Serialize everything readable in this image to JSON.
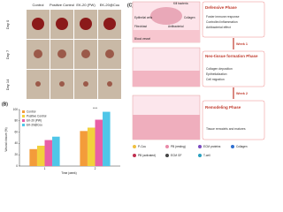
{
  "panel_a": {
    "columns": [
      "Control",
      "Positive Control",
      "EK-20 (PW)",
      "EK-20@Cou"
    ],
    "rows": [
      "Day 0",
      "Day 7",
      "Day 14"
    ]
  },
  "chart_data": {
    "type": "bar",
    "panel_label": "(B)",
    "y_label": "Wound closure (%)",
    "x_label": "Time (week)",
    "categories": [
      "1",
      "2"
    ],
    "series": [
      {
        "name": "Control",
        "color": "#f39c3a",
        "values": [
          30,
          62
        ]
      },
      {
        "name": "Positive Control",
        "color": "#f2d13c",
        "values": [
          36,
          68
        ]
      },
      {
        "name": "EK-20 (PW)",
        "color": "#e85fa6",
        "values": [
          46,
          82
        ]
      },
      {
        "name": "EK-20@Cou",
        "color": "#4fc6e8",
        "values": [
          52,
          96
        ]
      }
    ],
    "ylim": [
      0,
      100
    ],
    "yticks": [
      0,
      20,
      40,
      60,
      80,
      100
    ],
    "significance": "****"
  },
  "panel_c": {
    "panel_label": "(C)",
    "labels": [
      "Kill bacteria",
      "Epithelial cells",
      "Fibroblast",
      "Blood vessel",
      "Antibacterial",
      "Collagen"
    ],
    "phases": [
      {
        "title": "Defensive Phase",
        "items": [
          "Foster immune response",
          "Controlled inflammation",
          "Antibacterial effect"
        ]
      },
      {
        "title": "Neo-tissue formation Phase",
        "items": [
          "Collagen deposition",
          "Epithelialization",
          "Cell migration"
        ]
      },
      {
        "title": "Remodeling Phase",
        "items": [
          "Tissue remodels and matures"
        ]
      }
    ],
    "weeks": [
      "Week 1",
      "Week 2"
    ],
    "legend": [
      "P-Cou",
      "PB (resting)",
      "ECM proteins",
      "Collagen",
      "PB (activated)",
      "ECM GF",
      "T-cell"
    ]
  }
}
